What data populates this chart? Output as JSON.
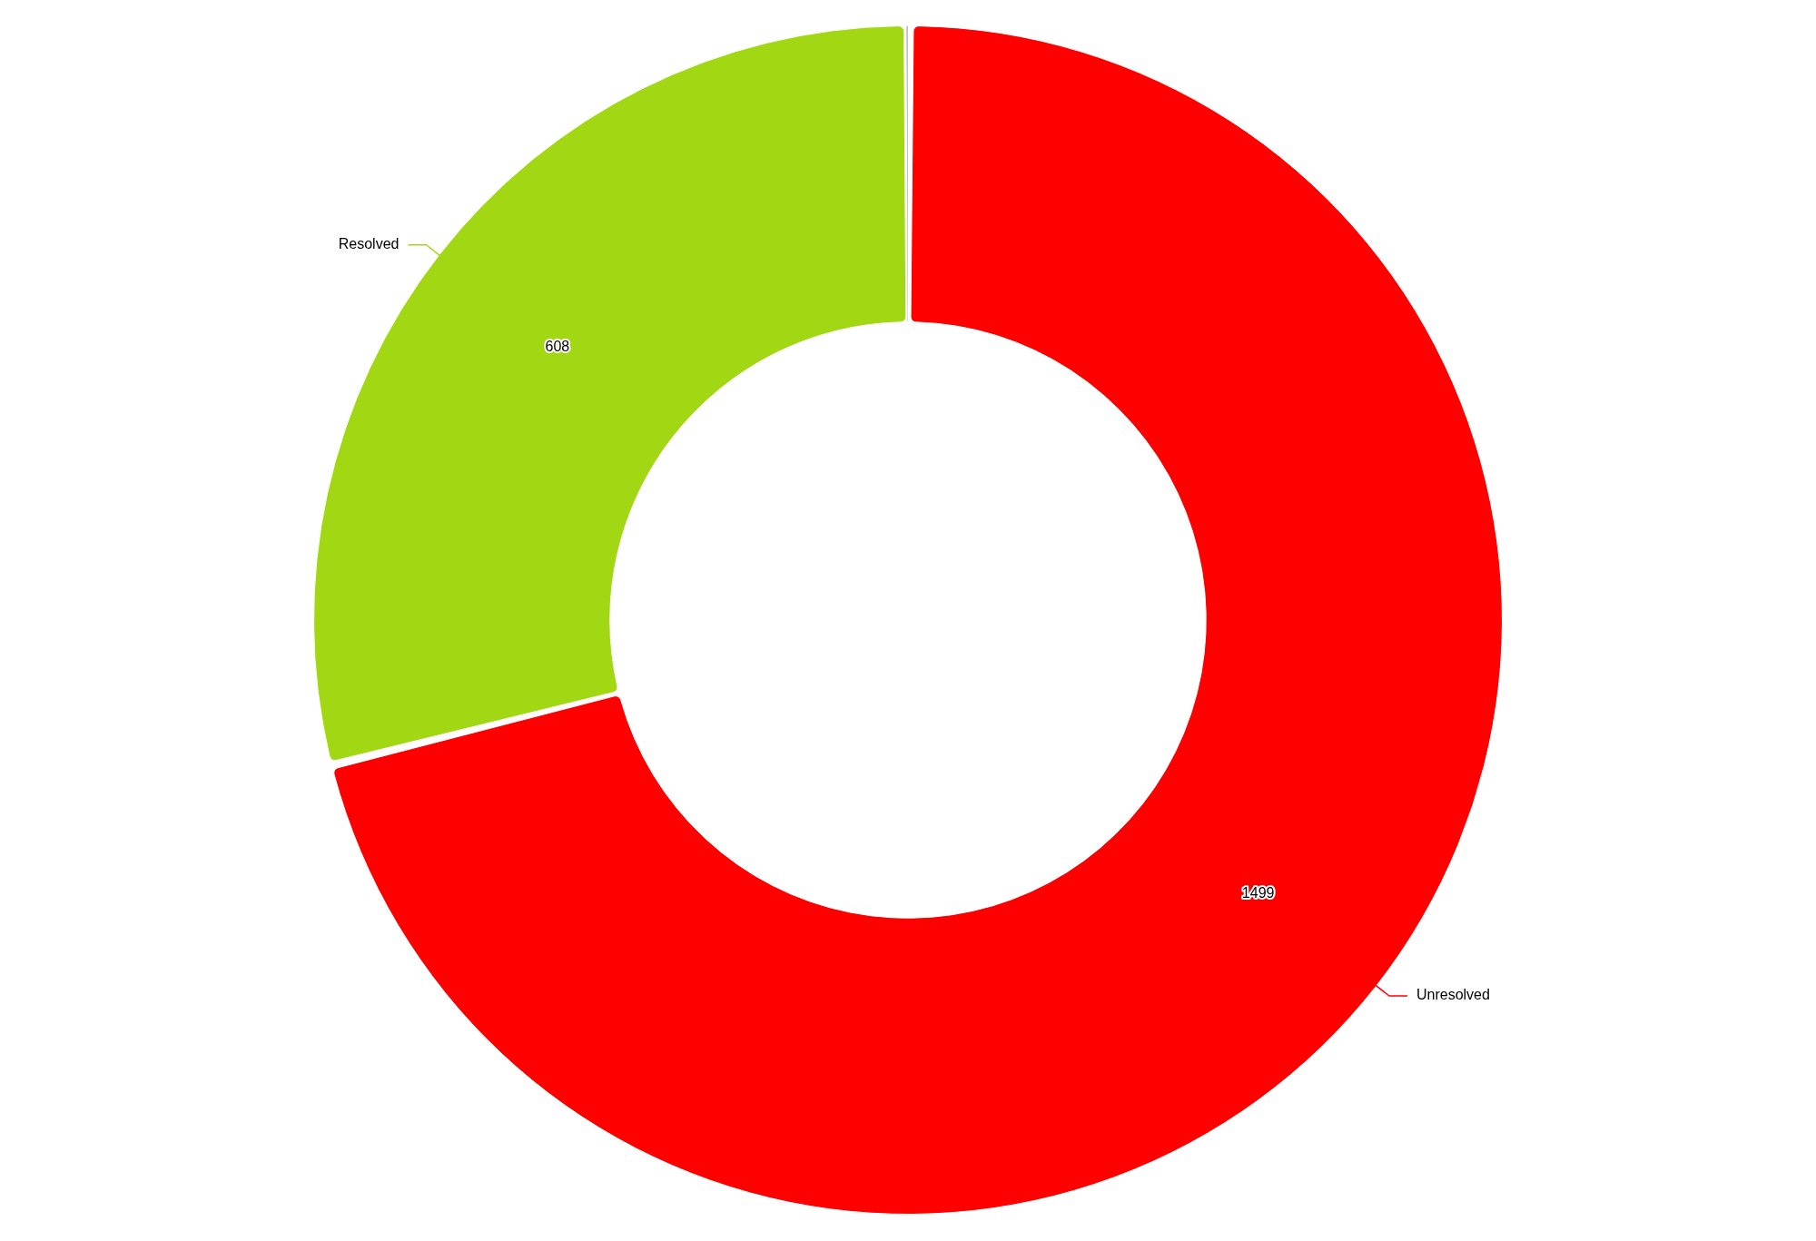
{
  "chart_data": {
    "type": "donut",
    "categories": [
      "Unresolved",
      "Resolved",
      null
    ],
    "values": [
      1499,
      608,
      1
    ],
    "colors": [
      "#ff0000",
      "#a2d813",
      "#808080"
    ],
    "value_labels": [
      "1499",
      "608",
      null
    ],
    "legend": false
  }
}
